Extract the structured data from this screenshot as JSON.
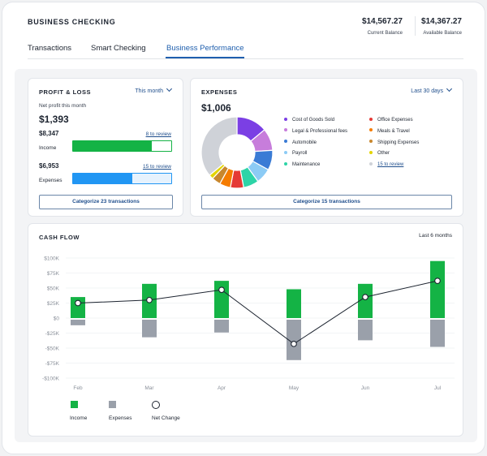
{
  "header": {
    "title": "BUSINESS CHECKING",
    "current_balance": {
      "amount": "$14,567.27",
      "label": "Current Balance"
    },
    "available_balance": {
      "amount": "$14,367.27",
      "label": "Available Balance"
    }
  },
  "tabs": [
    {
      "label": "Transactions",
      "active": false
    },
    {
      "label": "Smart Checking",
      "active": false
    },
    {
      "label": "Business Performance",
      "active": true
    }
  ],
  "profit_loss": {
    "title": "PROFIT & LOSS",
    "period": "This month",
    "net_label": "Net profit this month",
    "net_value": "$1,393",
    "income": {
      "amount": "$8,347",
      "label": "Income",
      "review": "8 to review",
      "fill": 0.8,
      "color": "#14b345"
    },
    "expenses": {
      "amount": "$6,953",
      "label": "Expenses",
      "review": "15 to review",
      "fill": 0.6,
      "color": "#2196f3"
    },
    "button": "Categorize 23 transactions"
  },
  "expenses": {
    "title": "EXPENSES",
    "period": "Last 30 days",
    "total": "$1,006",
    "button": "Categorize 15 transactions",
    "categories": [
      {
        "name": "Cost of Goods Sold",
        "color": "#7b3fe4",
        "value": 14
      },
      {
        "name": "Legal & Professional fees",
        "color": "#c77ddb",
        "value": 10
      },
      {
        "name": "Automobile",
        "color": "#3a7bd5",
        "value": 9
      },
      {
        "name": "Payroll",
        "color": "#8ccbf5",
        "value": 7
      },
      {
        "name": "Maintenance",
        "color": "#2dd4a7",
        "value": 7
      },
      {
        "name": "Office Expenses",
        "color": "#e53935",
        "value": 6
      },
      {
        "name": "Meals & Travel",
        "color": "#f57c00",
        "value": 5
      },
      {
        "name": "Shipping Expenses",
        "color": "#c8872e",
        "value": 4
      },
      {
        "name": "Other",
        "color": "#e3d400",
        "value": 2
      },
      {
        "name": "15 to review",
        "color": "#cfd2d8",
        "value": 36,
        "link": true
      }
    ]
  },
  "cash_flow": {
    "title": "CASH FLOW",
    "range": "Last 6 months",
    "legend": {
      "income": "Income",
      "expenses": "Expenses",
      "net": "Net Change"
    },
    "colors": {
      "income": "#14b345",
      "expenses": "#9aa0aa",
      "net": "#1d2430"
    },
    "chart_data": {
      "type": "bar",
      "categories": [
        "Feb",
        "Mar",
        "Apr",
        "May",
        "Jun",
        "Jul"
      ],
      "y_ticks": [
        "$100K",
        "$75K",
        "$50K",
        "$25K",
        "$0",
        "-$25K",
        "-$50K",
        "-$75K",
        "-$100K"
      ],
      "ylim": [
        -100000,
        100000
      ],
      "series": [
        {
          "name": "Income",
          "type": "bar",
          "values": [
            35000,
            57000,
            62000,
            48000,
            57000,
            95000
          ]
        },
        {
          "name": "Expenses",
          "type": "bar",
          "values": [
            -12000,
            -32000,
            -24000,
            -70000,
            -37000,
            -48000
          ]
        },
        {
          "name": "Net Change",
          "type": "line",
          "values": [
            25000,
            30000,
            47000,
            -43000,
            35000,
            62000
          ]
        }
      ]
    }
  }
}
